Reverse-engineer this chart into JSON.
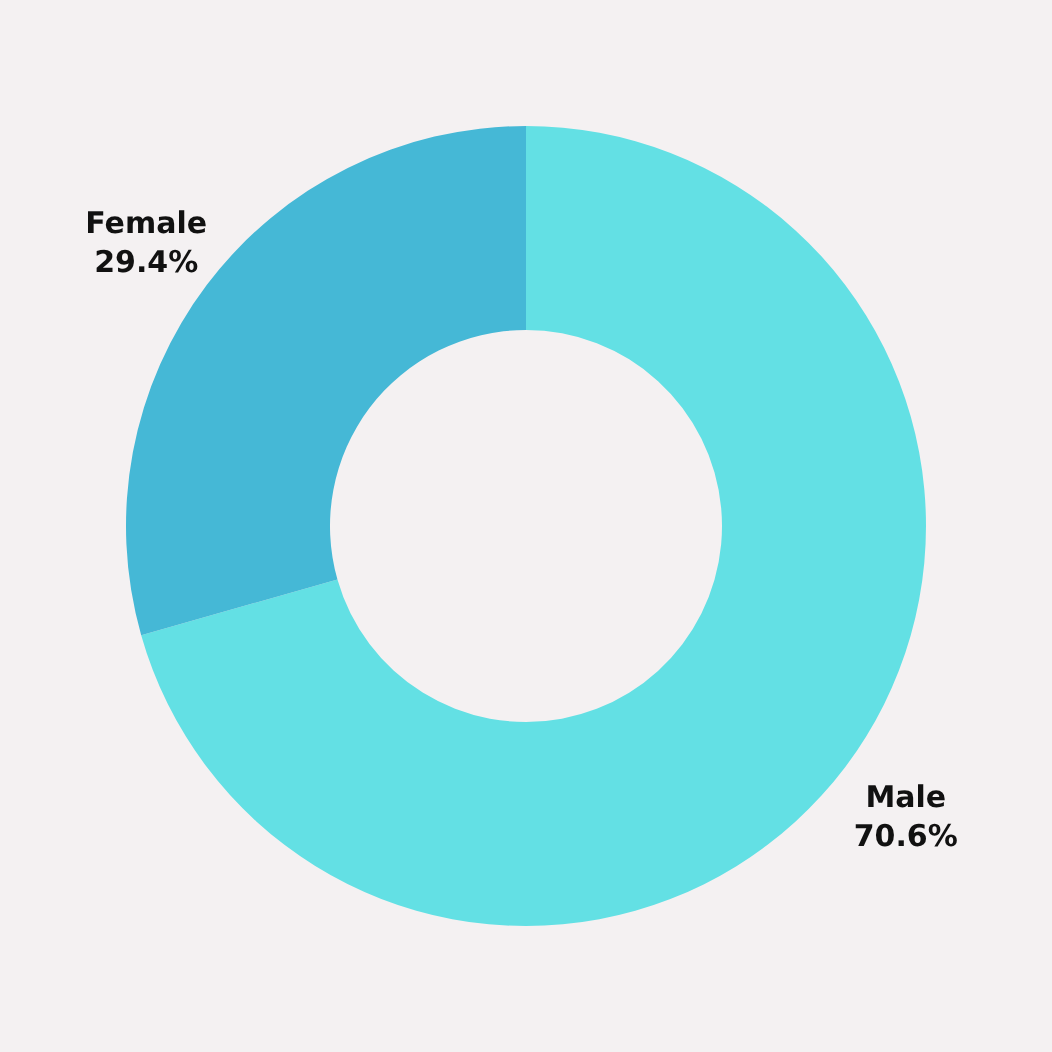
{
  "chart_data": {
    "type": "donut",
    "categories": [
      "Male",
      "Female"
    ],
    "values": [
      70.6,
      29.4
    ],
    "value_labels": [
      "70.6%",
      "29.4%"
    ],
    "colors": [
      "#63e0e4",
      "#45b8d6"
    ]
  }
}
